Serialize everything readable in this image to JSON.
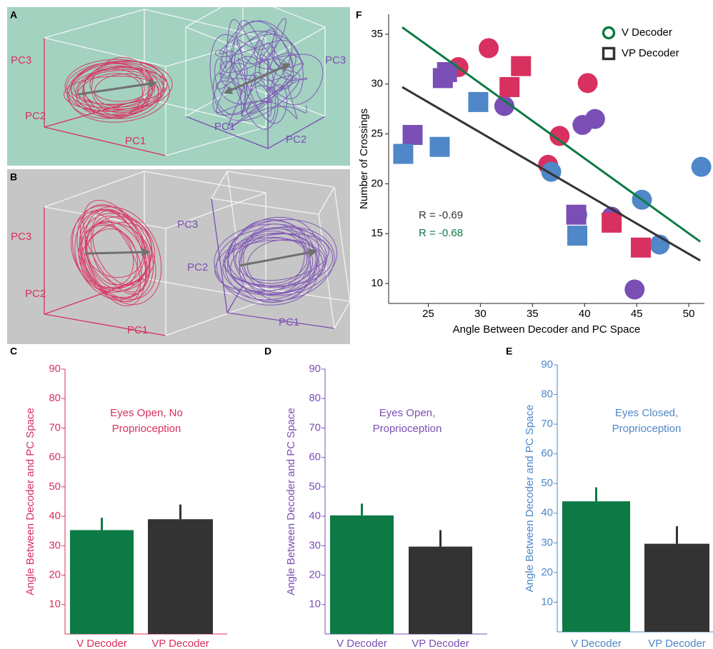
{
  "trajectory_panels": [
    {
      "panel": "A",
      "background": "#a3d2c0",
      "plots": [
        {
          "color": "#d8305f",
          "axis_labels": [
            "PC1",
            "PC2",
            "PC3"
          ]
        },
        {
          "color": "#7a4fb5",
          "axis_labels": [
            "PC1",
            "PC2",
            "PC3"
          ]
        }
      ]
    },
    {
      "panel": "B",
      "background": "#c6c6c6",
      "plots": [
        {
          "color": "#d8305f",
          "axis_labels": [
            "PC1",
            "PC2",
            "PC3"
          ]
        },
        {
          "color": "#7a4fb5",
          "axis_labels": [
            "PC1",
            "PC2",
            "PC3"
          ]
        }
      ]
    }
  ],
  "chart_data": [
    {
      "type": "bar",
      "panel": "C",
      "title": [
        "Eyes Open, No",
        "Proprioception"
      ],
      "ylabel": "Angle Between Decoder and PC Space",
      "axis_color": "#d8305f",
      "categories": [
        "V Decoder",
        "VP Decoder"
      ],
      "values": [
        35.3,
        39
      ],
      "errors": [
        4.2,
        5
      ],
      "colors": [
        "#0d7a45",
        "#333333"
      ],
      "ylim": [
        0,
        90
      ],
      "yticks": [
        10,
        20,
        30,
        40,
        50,
        60,
        70,
        80,
        90
      ]
    },
    {
      "type": "bar",
      "panel": "D",
      "title": [
        "Eyes Open,",
        "Proprioception"
      ],
      "ylabel": "Angle Between Decoder and PC Space",
      "axis_color": "#7a4fb5",
      "categories": [
        "V Decoder",
        "VP Decoder"
      ],
      "values": [
        40.3,
        29.7
      ],
      "errors": [
        4,
        5.6
      ],
      "colors": [
        "#0d7a45",
        "#333333"
      ],
      "ylim": [
        0,
        90
      ],
      "yticks": [
        10,
        20,
        30,
        40,
        50,
        60,
        70,
        80,
        90
      ]
    },
    {
      "type": "bar",
      "panel": "E",
      "title": [
        "Eyes Closed,",
        "Proprioception"
      ],
      "ylabel": "Angle Between Decoder and PC Space",
      "axis_color": "#4f87c8",
      "categories": [
        "V Decoder",
        "VP Decoder"
      ],
      "values": [
        44,
        29.7
      ],
      "errors": [
        4.7,
        5.9
      ],
      "colors": [
        "#0d7a45",
        "#333333"
      ],
      "ylim": [
        0,
        90
      ],
      "yticks": [
        10,
        20,
        30,
        40,
        50,
        60,
        70,
        80,
        90
      ]
    },
    {
      "type": "scatter",
      "panel": "F",
      "xlabel": "Angle Between Decoder and PC Space",
      "ylabel": "Number of Crossings",
      "xlim": [
        21.2,
        51.5
      ],
      "ylim": [
        8,
        37
      ],
      "xticks": [
        25,
        30,
        35,
        40,
        45,
        50
      ],
      "yticks": [
        10,
        15,
        20,
        25,
        30,
        35
      ],
      "series": [
        {
          "name": "V Decoder",
          "marker": "circle",
          "color": "#0d7a45",
          "x": [
            27.9,
            30.8,
            40.3,
            32.3,
            37.6,
            39.8,
            41.0,
            36.5,
            36.8,
            39.3,
            42.6,
            45.5,
            47.2,
            44.8,
            51.2
          ],
          "values": [
            31.7,
            33.6,
            30.1,
            27.8,
            24.8,
            25.9,
            26.5,
            21.9,
            21.2,
            16.9,
            16.7,
            18.4,
            13.9,
            9.4,
            21.7
          ],
          "point_colors": [
            "#d8305f",
            "#d8305f",
            "#d8305f",
            "#7a4fb5",
            "#d8305f",
            "#7a4fb5",
            "#7a4fb5",
            "#d8305f",
            "#4f87c8",
            "#4f87c8",
            "#7a4fb5",
            "#4f87c8",
            "#4f87c8",
            "#7a4fb5",
            "#4f87c8"
          ]
        },
        {
          "name": "VP Decoder",
          "marker": "square",
          "color": "#333333",
          "x": [
            26.8,
            26.4,
            32.8,
            33.9,
            29.8,
            23.5,
            22.6,
            26.1,
            39.2,
            39.3,
            42.6,
            45.4
          ],
          "values": [
            31.2,
            30.6,
            29.7,
            31.8,
            28.2,
            24.9,
            23.0,
            23.7,
            16.9,
            14.8,
            16.1,
            13.6
          ],
          "point_colors": [
            "#7a4fb5",
            "#7a4fb5",
            "#d8305f",
            "#d8305f",
            "#4f87c8",
            "#7a4fb5",
            "#4f87c8",
            "#4f87c8",
            "#7a4fb5",
            "#4f87c8",
            "#d8305f",
            "#d8305f"
          ]
        }
      ],
      "fits": [
        {
          "label": "R = -0.69",
          "color": "#333333",
          "x": [
            22.5,
            51.1
          ],
          "values": [
            29.7,
            12.3
          ]
        },
        {
          "label": "R = -0.68",
          "color": "#0d7a45",
          "x": [
            22.5,
            51.1
          ],
          "values": [
            35.7,
            14.2
          ]
        }
      ]
    }
  ]
}
